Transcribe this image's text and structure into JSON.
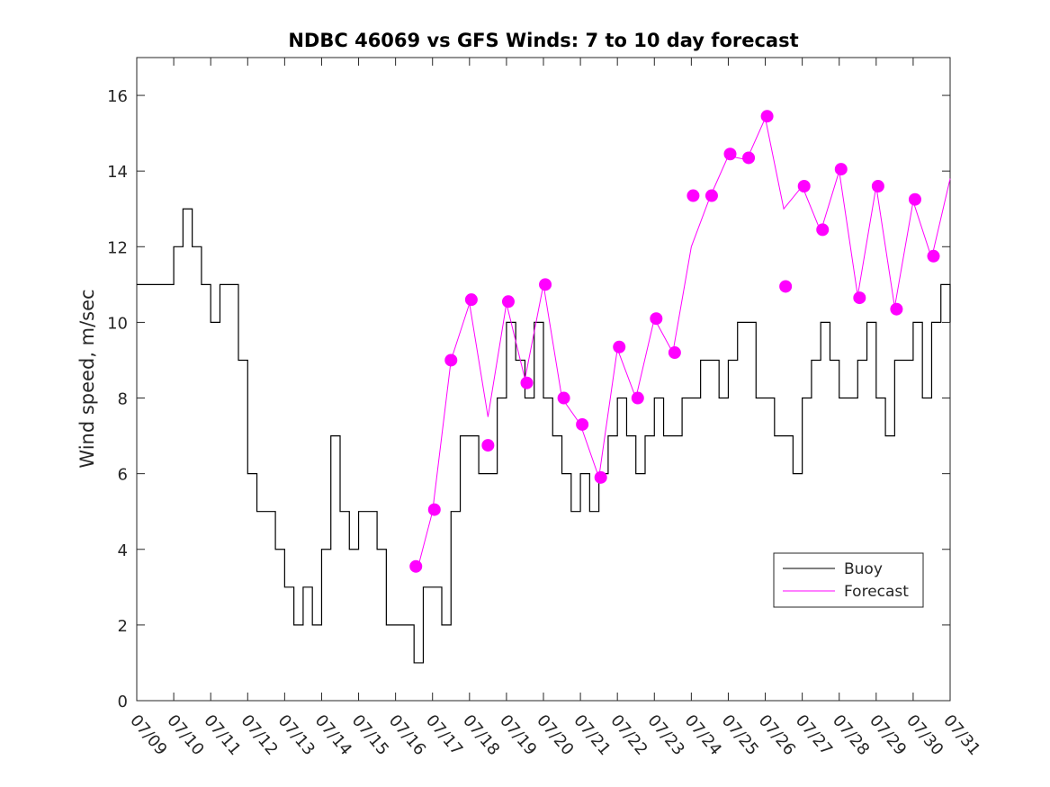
{
  "chart_data": {
    "type": "line",
    "title": "NDBC 46069 vs GFS Winds: 7 to 10 day forecast",
    "xlabel": "",
    "ylabel": "Wind speed, m/sec",
    "xlim": [
      0,
      22
    ],
    "ylim": [
      0,
      17
    ],
    "x_unit": "days since 07/09",
    "x_ticks": [
      {
        "x": 0,
        "label": "07/09"
      },
      {
        "x": 1,
        "label": "07/10"
      },
      {
        "x": 2,
        "label": "07/11"
      },
      {
        "x": 3,
        "label": "07/12"
      },
      {
        "x": 4,
        "label": "07/13"
      },
      {
        "x": 5,
        "label": "07/14"
      },
      {
        "x": 6,
        "label": "07/15"
      },
      {
        "x": 7,
        "label": "07/16"
      },
      {
        "x": 8,
        "label": "07/17"
      },
      {
        "x": 9,
        "label": "07/18"
      },
      {
        "x": 10,
        "label": "07/19"
      },
      {
        "x": 11,
        "label": "07/20"
      },
      {
        "x": 12,
        "label": "07/21"
      },
      {
        "x": 13,
        "label": "07/22"
      },
      {
        "x": 14,
        "label": "07/23"
      },
      {
        "x": 15,
        "label": "07/24"
      },
      {
        "x": 16,
        "label": "07/25"
      },
      {
        "x": 17,
        "label": "07/26"
      },
      {
        "x": 18,
        "label": "07/27"
      },
      {
        "x": 19,
        "label": "07/28"
      },
      {
        "x": 20,
        "label": "07/29"
      },
      {
        "x": 21,
        "label": "07/30"
      },
      {
        "x": 22,
        "label": "07/31"
      }
    ],
    "y_ticks": [
      0,
      2,
      4,
      6,
      8,
      10,
      12,
      14,
      16
    ],
    "legend": {
      "position": "bottom-right",
      "entries": [
        {
          "label": "Buoy",
          "color": "#000000"
        },
        {
          "label": "Forecast",
          "color": "#ff00ff"
        }
      ]
    },
    "series": [
      {
        "name": "Buoy",
        "color": "#000000",
        "x": [
          0.0,
          0.25,
          0.5,
          0.75,
          1.0,
          1.25,
          1.5,
          1.75,
          2.0,
          2.25,
          2.5,
          2.75,
          3.0,
          3.25,
          3.5,
          3.75,
          4.0,
          4.25,
          4.5,
          4.75,
          5.0,
          5.25,
          5.5,
          5.75,
          6.0,
          6.25,
          6.5,
          6.75,
          7.0,
          7.25,
          7.5,
          7.75,
          8.0,
          8.25,
          8.5,
          8.75,
          9.0,
          9.25,
          9.5,
          9.75,
          10.0,
          10.25,
          10.5,
          10.75,
          11.0,
          11.25,
          11.5,
          11.75,
          12.0,
          12.25,
          12.5,
          12.75,
          13.0,
          13.25,
          13.5,
          13.75,
          14.0,
          14.25,
          14.5,
          14.75,
          15.0,
          15.25,
          15.5,
          15.75,
          16.0,
          16.25,
          16.5,
          16.75,
          17.0,
          17.25,
          17.5,
          17.75,
          18.0,
          18.25,
          18.5,
          18.75,
          19.0,
          19.25,
          19.5,
          19.75,
          20.0,
          20.25,
          20.5,
          20.75,
          21.0,
          21.25,
          21.5,
          21.75,
          22.0
        ],
        "values": [
          11,
          11,
          11,
          11,
          12,
          13,
          12,
          11,
          10,
          11,
          11,
          9,
          6,
          5,
          5,
          4,
          3,
          2,
          3,
          2,
          4,
          7,
          5,
          4,
          5,
          5,
          4,
          2,
          2,
          2,
          1,
          3,
          3,
          2,
          5,
          7,
          7,
          6,
          6,
          8,
          10,
          9,
          8,
          10,
          8,
          7,
          6,
          5,
          6,
          5,
          6,
          7,
          8,
          7,
          6,
          7,
          8,
          7,
          7,
          8,
          8,
          9,
          9,
          8,
          9,
          10,
          10,
          8,
          8,
          7,
          7,
          6,
          8,
          9,
          10,
          9,
          8,
          8,
          9,
          10,
          8,
          7,
          9,
          9,
          10,
          8,
          10,
          11,
          10
        ]
      },
      {
        "name": "Forecast",
        "color": "#ff00ff",
        "x": [
          7.6,
          8.0,
          8.5,
          9.0,
          9.5,
          10.0,
          10.5,
          11.0,
          11.5,
          12.0,
          12.5,
          13.0,
          13.5,
          14.0,
          14.5,
          15.0,
          15.5,
          16.0,
          16.5,
          17.0,
          17.5,
          18.0,
          18.5,
          19.0,
          19.5,
          20.0,
          20.5,
          21.0,
          21.5,
          22.0
        ],
        "values": [
          3.5,
          5,
          9,
          10.5,
          7.5,
          10.5,
          8.5,
          11,
          8,
          7.3,
          5.9,
          9.3,
          8,
          10.1,
          9.2,
          12,
          13.3,
          14.4,
          14.3,
          15.4,
          13,
          13.6,
          12.4,
          14,
          10.7,
          13.6,
          10.4,
          13.2,
          11.7,
          13.8
        ]
      }
    ],
    "forecast_markers": [
      {
        "x": 7.55,
        "y": 3.55
      },
      {
        "x": 8.05,
        "y": 5.05
      },
      {
        "x": 8.5,
        "y": 9.0
      },
      {
        "x": 9.05,
        "y": 10.6
      },
      {
        "x": 9.5,
        "y": 6.75
      },
      {
        "x": 10.05,
        "y": 10.55
      },
      {
        "x": 10.55,
        "y": 8.4
      },
      {
        "x": 11.05,
        "y": 11.0
      },
      {
        "x": 11.55,
        "y": 8.0
      },
      {
        "x": 12.05,
        "y": 7.3
      },
      {
        "x": 12.55,
        "y": 5.9
      },
      {
        "x": 13.05,
        "y": 9.35
      },
      {
        "x": 13.55,
        "y": 8.0
      },
      {
        "x": 14.05,
        "y": 10.1
      },
      {
        "x": 14.55,
        "y": 9.2
      },
      {
        "x": 15.05,
        "y": 13.35
      },
      {
        "x": 15.55,
        "y": 13.35
      },
      {
        "x": 16.05,
        "y": 14.45
      },
      {
        "x": 16.55,
        "y": 14.35
      },
      {
        "x": 17.05,
        "y": 15.45
      },
      {
        "x": 17.55,
        "y": 10.95
      },
      {
        "x": 18.05,
        "y": 13.6
      },
      {
        "x": 18.55,
        "y": 12.45
      },
      {
        "x": 19.05,
        "y": 14.05
      },
      {
        "x": 19.55,
        "y": 10.65
      },
      {
        "x": 20.05,
        "y": 13.6
      },
      {
        "x": 20.55,
        "y": 10.35
      },
      {
        "x": 21.05,
        "y": 13.25
      },
      {
        "x": 21.55,
        "y": 11.75
      }
    ]
  }
}
